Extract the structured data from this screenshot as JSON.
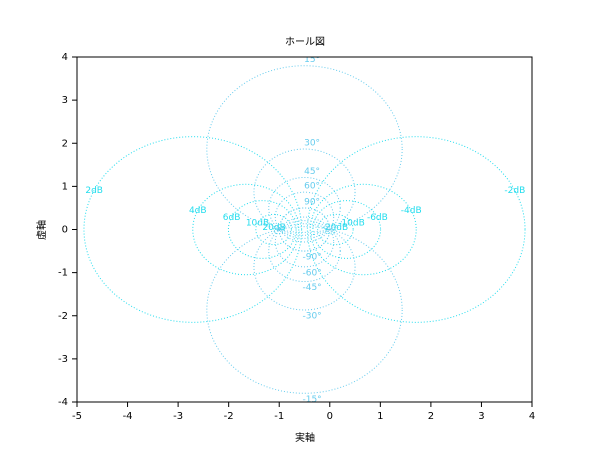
{
  "chart_data": {
    "type": "hall",
    "title": "ホール図",
    "x_label": "実軸",
    "y_label": "虚軸",
    "xlim": [
      -5,
      4
    ],
    "ylim": [
      -4,
      4
    ],
    "xticks": [
      -5,
      -4,
      -3,
      -2,
      -1,
      0,
      1,
      2,
      3,
      4
    ],
    "yticks": [
      -4,
      -3,
      -2,
      -1,
      0,
      1,
      2,
      3,
      4
    ],
    "m_circles": {
      "color": "#22ddee",
      "values": [
        -20,
        -10,
        -6,
        -4,
        -2,
        2,
        4,
        6,
        10,
        20
      ],
      "value_labels": [
        "-20dB",
        "-10dB",
        "-6dB",
        "-4dB",
        "-2dB",
        "2dB",
        "4dB",
        "6dB",
        "10dB",
        "20dB"
      ]
    },
    "n_circles": {
      "color": "#66ccee",
      "values": [
        -90,
        -60,
        -45,
        -30,
        -15,
        15,
        30,
        45,
        60,
        90
      ],
      "value_labels": [
        "-90°",
        "-60°",
        "-45°",
        "-30°",
        "-15°",
        "15°",
        "30°",
        "45°",
        "60°",
        "90°"
      ]
    }
  }
}
